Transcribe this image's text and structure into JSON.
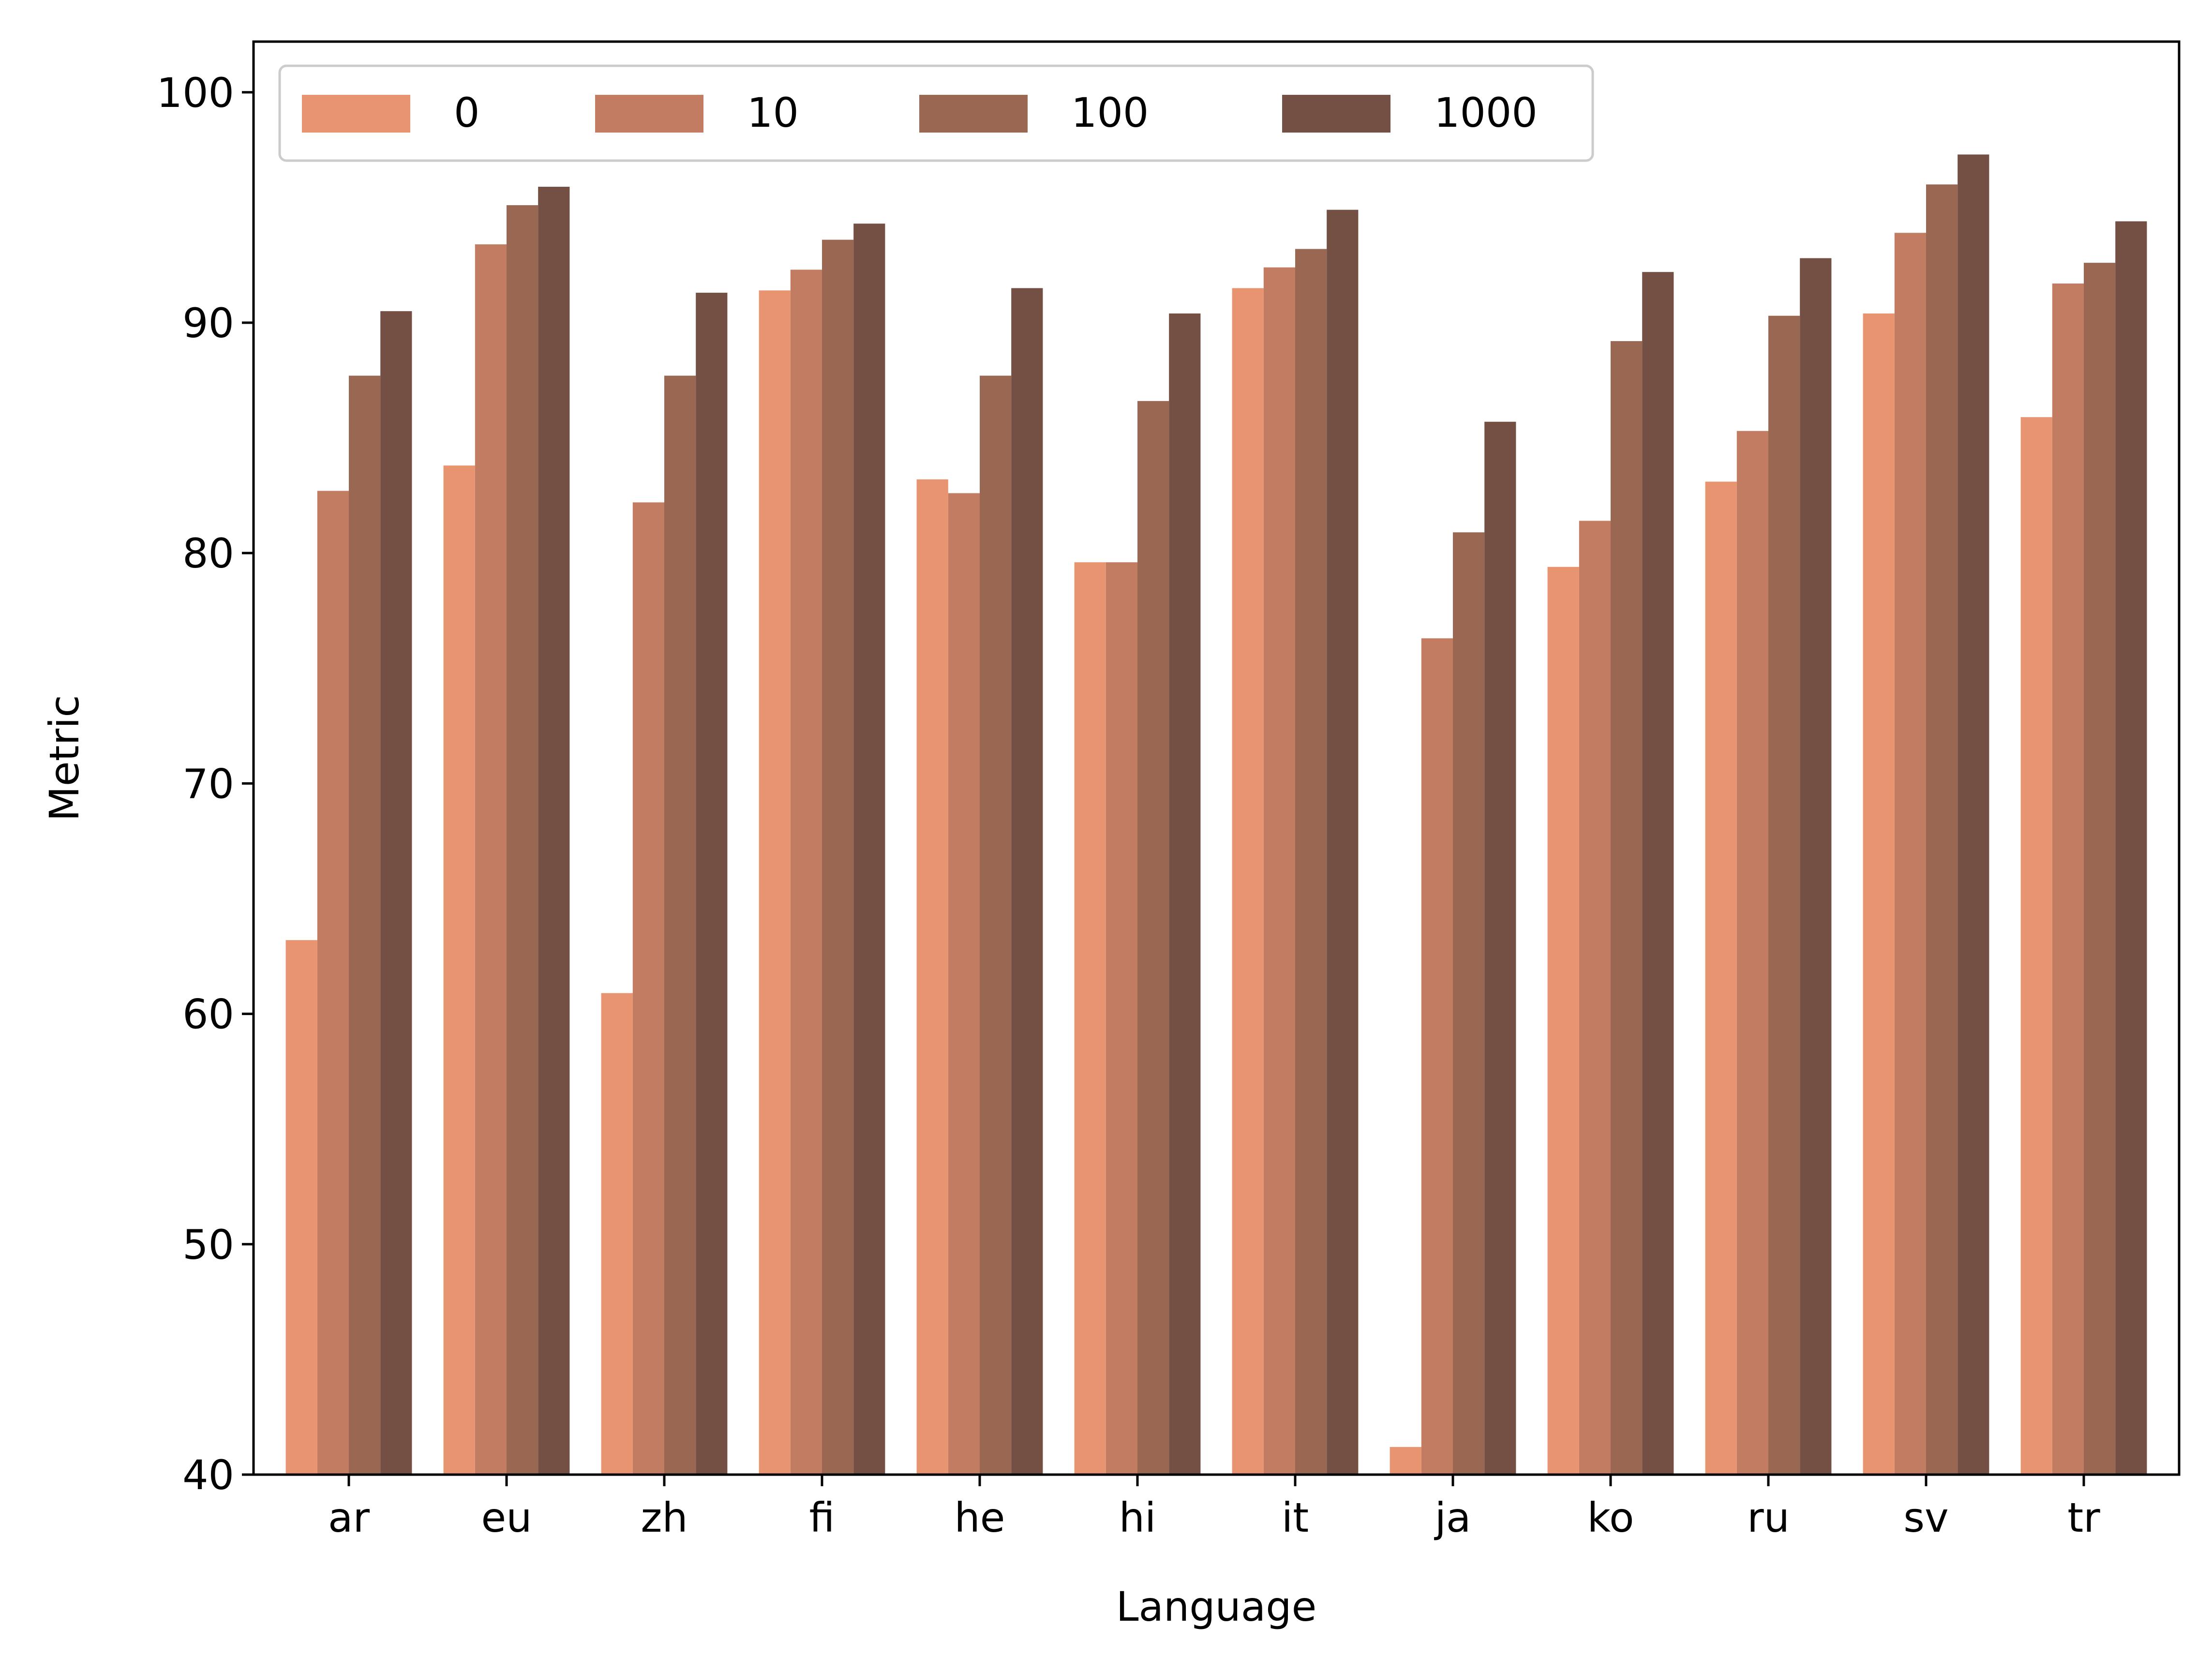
{
  "chart_data": {
    "type": "bar",
    "title": "",
    "xlabel": "Language",
    "ylabel": "Metric",
    "ylim": [
      40,
      102.2
    ],
    "yticks": [
      40,
      50,
      60,
      70,
      80,
      90,
      100
    ],
    "categories": [
      "ar",
      "eu",
      "zh",
      "fi",
      "he",
      "hi",
      "it",
      "ja",
      "ko",
      "ru",
      "sv",
      "tr"
    ],
    "legend": {
      "position": "top-left",
      "columns": 4
    },
    "grid": false,
    "series": [
      {
        "name": "0",
        "color": "#e89470",
        "values": [
          63.2,
          83.8,
          60.9,
          91.4,
          83.2,
          79.6,
          91.5,
          41.2,
          79.4,
          83.1,
          90.4,
          85.9
        ]
      },
      {
        "name": "10",
        "color": "#c27c62",
        "values": [
          82.7,
          93.4,
          82.2,
          92.3,
          82.6,
          79.6,
          92.4,
          76.3,
          81.4,
          85.3,
          93.9,
          91.7
        ]
      },
      {
        "name": "100",
        "color": "#9a6753",
        "values": [
          87.7,
          95.1,
          87.7,
          93.6,
          87.7,
          86.6,
          93.2,
          80.9,
          89.2,
          90.3,
          96.0,
          92.6
        ]
      },
      {
        "name": "1000",
        "color": "#735043",
        "values": [
          90.5,
          95.9,
          91.3,
          94.3,
          91.5,
          90.4,
          94.9,
          85.7,
          92.2,
          92.8,
          97.3,
          94.4
        ]
      }
    ]
  }
}
